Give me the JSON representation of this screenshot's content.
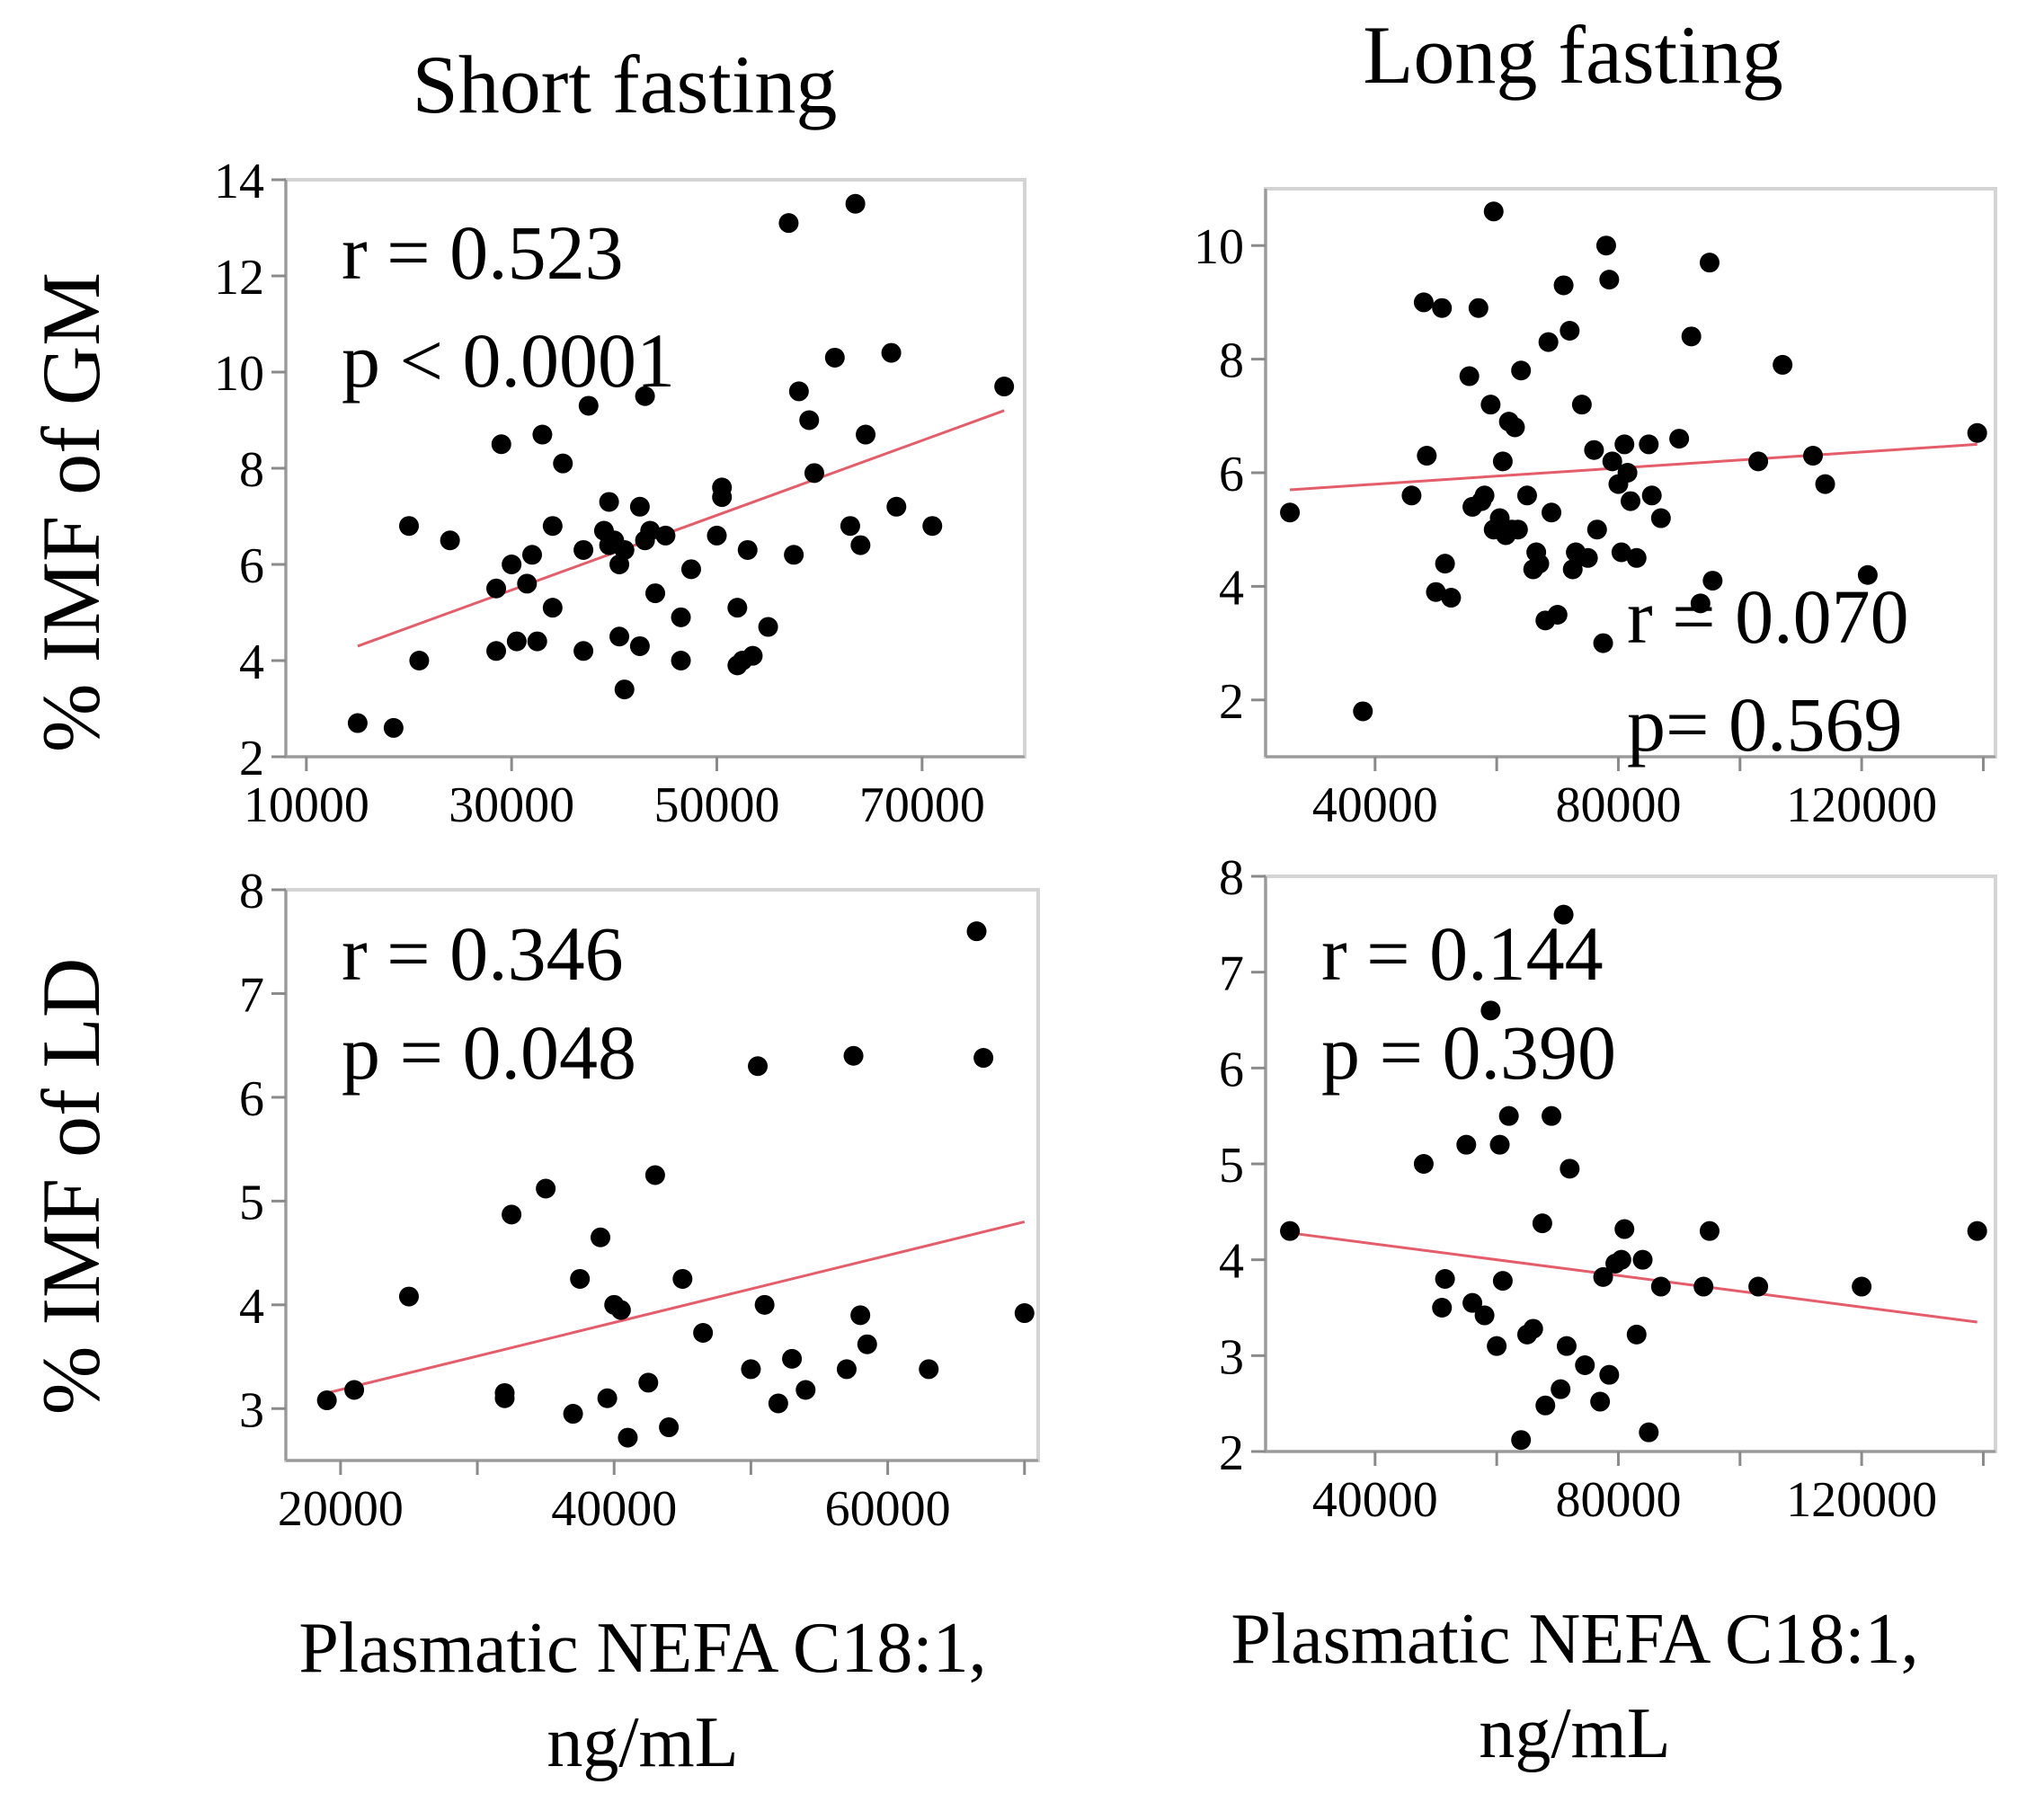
{
  "col_titles": [
    "Short fasting",
    "Long fasting"
  ],
  "row_labels": [
    "% IMF of GM",
    "% IMF of LD"
  ],
  "xlabel_lines": [
    "Plasmatic NEFA C18:1,",
    "ng/mL"
  ],
  "colors": {
    "point": "#000000",
    "fit_line": "#e35d6a",
    "frame": "#d4d4d4"
  },
  "chart_data": [
    {
      "type": "scatter",
      "id": "short-gm",
      "title": "Short fasting",
      "xlabel": "Plasmatic NEFA C18:1, ng/mL",
      "ylabel": "% IMF of GM",
      "xlim": [
        8000,
        80000
      ],
      "ylim": [
        2,
        14
      ],
      "xticks": [
        10000,
        30000,
        50000,
        70000
      ],
      "yticks": [
        2,
        4,
        6,
        8,
        10,
        12,
        14
      ],
      "xticks_labeled": [
        10000,
        30000,
        50000,
        70000
      ],
      "stats": [
        "r = 0.523",
        "p < 0.0001"
      ],
      "stats_position": "top-left",
      "fit": {
        "x": [
          15000,
          78000
        ],
        "y": [
          4.3,
          9.2
        ]
      },
      "x": [
        15000,
        18500,
        20000,
        21000,
        24000,
        28500,
        28500,
        29000,
        30000,
        30500,
        31500,
        32000,
        32500,
        33000,
        34000,
        34000,
        35000,
        37000,
        37000,
        37500,
        39000,
        39500,
        39500,
        40000,
        40500,
        40500,
        41000,
        41000,
        42500,
        42500,
        43000,
        43000,
        43500,
        44000,
        45000,
        46500,
        46500,
        47500,
        50000,
        50500,
        50500,
        52000,
        52000,
        52500,
        53000,
        53500,
        55000,
        57000,
        57500,
        58000,
        59000,
        59500,
        61500,
        63000,
        63500,
        64000,
        64500,
        67000,
        67500,
        71000,
        78000
      ],
      "y": [
        2.7,
        2.6,
        6.8,
        4.0,
        6.5,
        4.2,
        5.5,
        8.5,
        6.0,
        4.4,
        5.6,
        6.2,
        4.4,
        8.7,
        5.1,
        6.8,
        8.1,
        6.3,
        4.2,
        9.3,
        6.7,
        6.4,
        7.3,
        6.5,
        6.0,
        4.5,
        3.4,
        6.3,
        7.2,
        4.3,
        6.5,
        9.5,
        6.7,
        5.4,
        6.6,
        4.0,
        4.9,
        5.9,
        6.6,
        7.4,
        7.6,
        3.9,
        5.1,
        4.0,
        6.3,
        4.1,
        4.7,
        13.1,
        6.2,
        9.6,
        9.0,
        7.9,
        10.3,
        6.8,
        13.5,
        6.4,
        8.7,
        10.4,
        7.2,
        6.8,
        9.7
      ]
    },
    {
      "type": "scatter",
      "id": "long-gm",
      "title": "Long fasting",
      "xlabel": "Plasmatic NEFA C18:1, ng/mL",
      "ylabel": "% IMF of GM",
      "xlim": [
        22000,
        142000
      ],
      "ylim": [
        1,
        11
      ],
      "xticks": [
        20000,
        40000,
        60000,
        80000,
        100000,
        120000,
        140000
      ],
      "yticks": [
        2,
        4,
        6,
        8,
        10
      ],
      "xticks_labeled": [
        40000,
        80000,
        120000
      ],
      "stats": [
        "r = 0.070",
        "p= 0.569"
      ],
      "stats_position": "bottom-right",
      "fit": {
        "x": [
          26000,
          139000
        ],
        "y": [
          5.7,
          6.5
        ]
      },
      "x": [
        26000,
        38000,
        46000,
        48000,
        48500,
        50000,
        51000,
        51500,
        52500,
        55500,
        56000,
        57000,
        57500,
        58000,
        59000,
        59500,
        59500,
        60500,
        61000,
        61500,
        62000,
        62500,
        63000,
        63500,
        64000,
        65000,
        66000,
        66500,
        67000,
        68000,
        68500,
        69000,
        70000,
        71000,
        72000,
        72500,
        73000,
        74000,
        75000,
        76000,
        76500,
        77500,
        78000,
        78500,
        79000,
        80000,
        80500,
        81000,
        81500,
        82000,
        83000,
        85000,
        85500,
        87000,
        90000,
        92000,
        93500,
        95000,
        95500,
        103000,
        107000,
        112000,
        114000,
        121000,
        139000
      ],
      "y": [
        5.3,
        1.8,
        5.6,
        9.0,
        6.3,
        3.9,
        8.9,
        4.4,
        3.8,
        7.7,
        5.4,
        8.9,
        5.5,
        5.6,
        7.2,
        10.6,
        5.0,
        5.2,
        6.2,
        4.9,
        6.9,
        5.0,
        6.8,
        5.0,
        7.8,
        5.6,
        4.3,
        4.6,
        4.4,
        3.4,
        8.3,
        5.3,
        3.5,
        9.3,
        8.5,
        4.3,
        4.6,
        7.2,
        4.5,
        6.4,
        5.0,
        3.0,
        10.0,
        9.4,
        6.2,
        5.8,
        4.6,
        6.5,
        6.0,
        5.5,
        4.5,
        6.5,
        5.6,
        5.2,
        6.6,
        8.4,
        3.7,
        9.7,
        4.1,
        6.2,
        7.9,
        6.3,
        5.8,
        4.2,
        6.7
      ]
    },
    {
      "type": "scatter",
      "id": "short-ld",
      "title": "Short fasting",
      "xlabel": "Plasmatic NEFA C18:1, ng/mL",
      "ylabel": "% IMF of LD",
      "xlim": [
        16000,
        71000
      ],
      "ylim": [
        2.5,
        8
      ],
      "xticks": [
        20000,
        30000,
        40000,
        50000,
        60000,
        70000
      ],
      "yticks": [
        3,
        4,
        5,
        6,
        7,
        8
      ],
      "xticks_labeled": [
        20000,
        40000,
        60000
      ],
      "stats": [
        "r = 0.346",
        "p = 0.048"
      ],
      "stats_position": "top-left",
      "fit": {
        "x": [
          19000,
          70000
        ],
        "y": [
          3.15,
          4.8
        ]
      },
      "x": [
        19000,
        21000,
        25000,
        32000,
        32000,
        32500,
        35000,
        37000,
        37500,
        39000,
        39500,
        40000,
        40500,
        41000,
        42500,
        43000,
        44000,
        45000,
        46500,
        50000,
        50500,
        51000,
        52000,
        53000,
        54000,
        57000,
        57500,
        58000,
        58500,
        63000,
        66500,
        67000,
        70000
      ],
      "y": [
        3.08,
        3.18,
        4.08,
        3.15,
        3.1,
        4.87,
        5.12,
        2.95,
        4.25,
        4.65,
        3.1,
        4.0,
        3.95,
        2.72,
        3.25,
        5.25,
        2.82,
        4.25,
        3.73,
        3.38,
        6.3,
        4.0,
        3.05,
        3.48,
        3.18,
        3.38,
        6.4,
        3.9,
        3.62,
        3.38,
        7.6,
        6.38,
        3.92
      ]
    },
    {
      "type": "scatter",
      "id": "long-ld",
      "title": "Long fasting",
      "xlabel": "Plasmatic NEFA C18:1, ng/mL",
      "ylabel": "% IMF of LD",
      "xlim": [
        22000,
        142000
      ],
      "ylim": [
        2,
        8
      ],
      "xticks": [
        20000,
        40000,
        60000,
        80000,
        100000,
        120000,
        140000
      ],
      "yticks": [
        2,
        3,
        4,
        5,
        6,
        7,
        8
      ],
      "xticks_labeled": [
        40000,
        80000,
        120000
      ],
      "stats": [
        "r = 0.144",
        "p = 0.390"
      ],
      "stats_position": "top-left",
      "fit": {
        "x": [
          26000,
          139000
        ],
        "y": [
          4.28,
          3.35
        ]
      },
      "x": [
        26000,
        48000,
        51000,
        51500,
        55000,
        56000,
        58000,
        59000,
        60000,
        60500,
        61000,
        62000,
        64000,
        65000,
        66000,
        67500,
        68000,
        69000,
        70500,
        71000,
        71500,
        72000,
        74500,
        77000,
        77500,
        78500,
        79500,
        80500,
        81000,
        83000,
        84000,
        85000,
        87000,
        94000,
        95000,
        103000,
        120000,
        139000
      ],
      "y": [
        4.3,
        5.0,
        3.5,
        3.8,
        5.2,
        3.55,
        3.42,
        6.6,
        3.1,
        5.2,
        3.78,
        5.5,
        2.12,
        3.22,
        3.28,
        4.38,
        2.48,
        5.5,
        2.65,
        7.6,
        3.1,
        4.95,
        2.9,
        2.52,
        3.82,
        2.8,
        3.96,
        4.0,
        4.32,
        3.22,
        4.0,
        2.2,
        3.72,
        3.72,
        4.3,
        3.72,
        3.72,
        4.3
      ]
    }
  ]
}
